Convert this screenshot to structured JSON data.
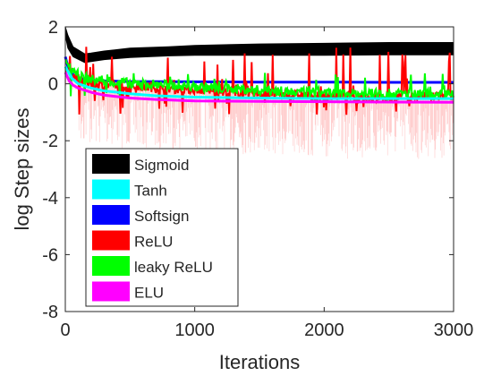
{
  "chart_data": {
    "type": "line",
    "title": "",
    "xlabel": "Iterations",
    "ylabel": "log Step sizes",
    "xlim": [
      0,
      3000
    ],
    "ylim": [
      -8,
      2
    ],
    "xticks": [
      0,
      1000,
      2000,
      3000
    ],
    "yticks": [
      -8,
      -6,
      -4,
      -2,
      0,
      2
    ],
    "grid": false,
    "legend_position": "bottom-left",
    "series": [
      {
        "name": "Sigmoid",
        "color": "#000000",
        "style": "band",
        "x": [
          0,
          20,
          60,
          150,
          200,
          300,
          500,
          800,
          1000,
          1500,
          2000,
          2500,
          3000
        ],
        "lower": [
          1.7,
          1.25,
          0.95,
          0.75,
          0.78,
          0.85,
          0.92,
          0.98,
          1.0,
          1.0,
          1.0,
          1.02,
          1.02
        ],
        "upper": [
          2.0,
          1.7,
          1.3,
          1.05,
          1.08,
          1.15,
          1.25,
          1.3,
          1.35,
          1.4,
          1.42,
          1.45,
          1.45
        ]
      },
      {
        "name": "Tanh",
        "color": "#00ffff",
        "style": "line",
        "x": [
          0,
          50,
          100,
          200,
          300,
          500,
          700,
          1000,
          1500,
          2000,
          2500,
          3000
        ],
        "y": [
          0.6,
          0.2,
          0.0,
          -0.15,
          -0.25,
          -0.35,
          -0.42,
          -0.47,
          -0.5,
          -0.52,
          -0.52,
          -0.52
        ]
      },
      {
        "name": "Softsign",
        "color": "#0000ff",
        "style": "line",
        "x": [
          0,
          20,
          50,
          100,
          200,
          300,
          500,
          1000,
          1500,
          2000,
          2500,
          3000
        ],
        "y": [
          0.95,
          0.6,
          0.35,
          0.2,
          0.12,
          0.1,
          0.08,
          0.07,
          0.06,
          0.06,
          0.05,
          0.05
        ]
      },
      {
        "name": "ReLU",
        "color": "#ff0000",
        "style": "noisy",
        "x": [
          0,
          100,
          200,
          400,
          600,
          800,
          1000,
          1200,
          1400,
          1600,
          1800,
          2000,
          2200,
          2400,
          2600,
          2800,
          3000
        ],
        "y": [
          0.5,
          0.15,
          0.0,
          -0.05,
          -0.1,
          -0.15,
          -0.2,
          -0.25,
          -0.3,
          -0.35,
          -0.4,
          -0.42,
          -0.45,
          -0.45,
          -0.45,
          -0.45,
          -0.45
        ],
        "spike_max": 1.3,
        "dip_min": -1.1
      },
      {
        "name": "leaky ReLU",
        "color": "#00ff00",
        "style": "noisy",
        "x": [
          0,
          100,
          200,
          400,
          600,
          800,
          1000,
          1200,
          1400,
          1600,
          1800,
          2000,
          2200,
          2400,
          2600,
          2800,
          3000
        ],
        "y": [
          0.8,
          0.3,
          0.15,
          0.05,
          0.0,
          -0.05,
          -0.1,
          -0.15,
          -0.2,
          -0.25,
          -0.3,
          -0.3,
          -0.35,
          -0.35,
          -0.35,
          -0.35,
          -0.35
        ],
        "spike_max": 0.4,
        "dip_min": -0.6
      },
      {
        "name": "ELU",
        "color": "#ff00ff",
        "style": "line",
        "x": [
          0,
          30,
          60,
          100,
          200,
          300,
          500,
          700,
          1000,
          1500,
          2000,
          2500,
          3000
        ],
        "y": [
          0.4,
          0.1,
          -0.05,
          -0.15,
          -0.3,
          -0.4,
          -0.5,
          -0.55,
          -0.6,
          -0.62,
          -0.63,
          -0.64,
          -0.65
        ]
      }
    ]
  }
}
